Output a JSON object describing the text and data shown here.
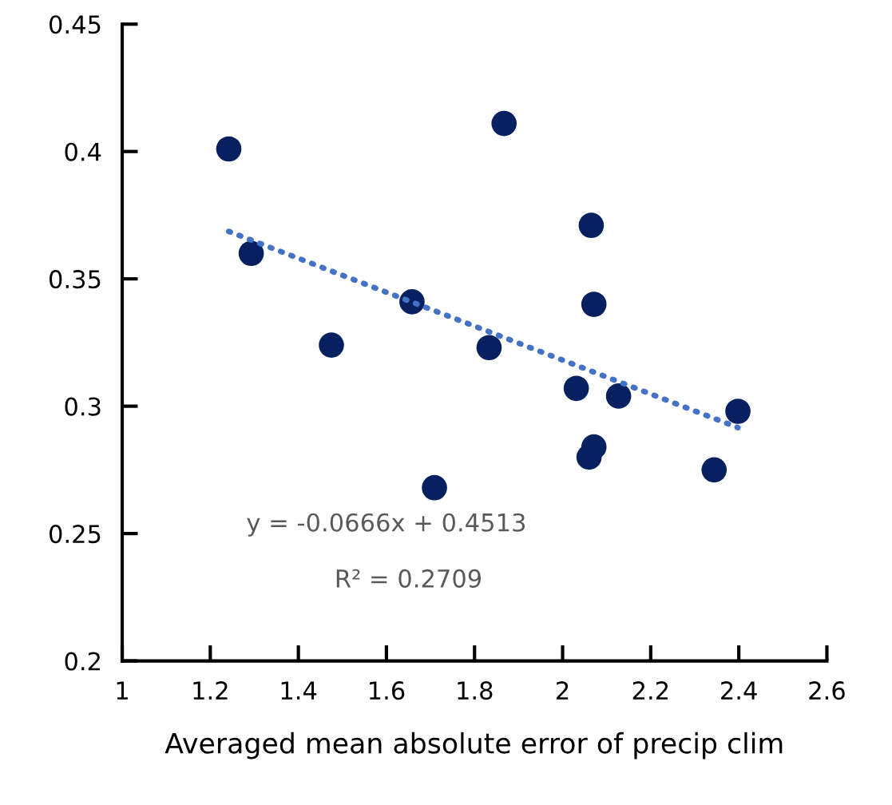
{
  "chart_data": {
    "type": "scatter",
    "xlabel": "Averaged mean absolute error of precip clim",
    "x": [
      1.242,
      1.293,
      1.475,
      1.658,
      1.833,
      1.867,
      1.709,
      2.031,
      2.065,
      2.071,
      2.127,
      2.071,
      2.06,
      2.344,
      2.398
    ],
    "series": [
      {
        "color": "#072060",
        "marker": "circle",
        "values": [
          0.401,
          0.36,
          0.324,
          0.341,
          0.323,
          0.411,
          0.268,
          0.307,
          0.371,
          0.34,
          0.304,
          0.284,
          0.28,
          0.275,
          0.298
        ]
      },
      {
        "type": "line",
        "color": "#4472c4",
        "line_style": "dotted",
        "x": [
          1.242,
          2.398
        ],
        "values": [
          0.3686,
          0.2916
        ]
      }
    ],
    "annotations": [
      "y = -0.0666x + 0.4513",
      "R² = 0.2709"
    ],
    "xlim": [
      1,
      2.6
    ],
    "xticks": [
      1,
      1.2,
      1.4,
      1.6,
      1.8,
      2,
      2.2,
      2.4,
      2.6
    ],
    "ylim": [
      0.2,
      0.45
    ],
    "yticks": [
      0.2,
      0.25,
      0.3,
      0.35,
      0.4,
      0.45
    ],
    "grid": false
  }
}
